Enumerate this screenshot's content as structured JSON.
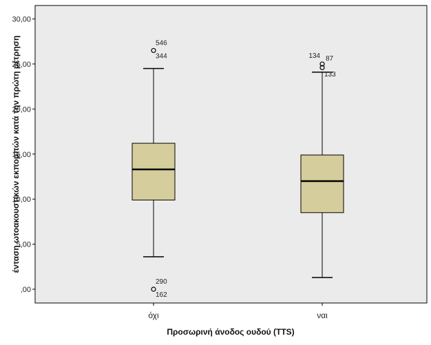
{
  "chart_data": {
    "type": "box",
    "xlabel": "Προσωρινή άνοδος ουδού (TTS)",
    "ylabel": "ένταση ωτοακουστικών εκπομπών κατά την πρώτη μέτρηση",
    "ylim": [
      -1,
      31
    ],
    "yticks": [
      0,
      5,
      10,
      15,
      20,
      25,
      30
    ],
    "ytick_labels": [
      ",00",
      "5,00",
      "10,00",
      "15,00",
      "20,00",
      "25,00",
      "30,00"
    ],
    "grid": false,
    "colors": {
      "plot_bg": "#ebebeb",
      "box_fill": "#d5cd9b",
      "stroke": "#000000"
    },
    "categories": [
      "όχι",
      "ναι"
    ],
    "boxes": [
      {
        "category": "όχι",
        "whisker_low": 3.6,
        "q1": 9.9,
        "median": 13.3,
        "q3": 16.2,
        "whisker_high": 24.5,
        "outliers": [
          {
            "value": 26.5,
            "labels": [
              "546",
              "344"
            ]
          },
          {
            "value": 0.0,
            "labels": [
              "290",
              "162"
            ]
          }
        ]
      },
      {
        "category": "ναι",
        "whisker_low": 1.3,
        "q1": 8.5,
        "median": 12.0,
        "q3": 14.9,
        "whisker_high": 24.1,
        "outliers": [
          {
            "value": 25.0,
            "labels": [
              "134",
              "87"
            ]
          },
          {
            "value": 24.6,
            "labels": [
              "133"
            ]
          }
        ]
      }
    ]
  }
}
